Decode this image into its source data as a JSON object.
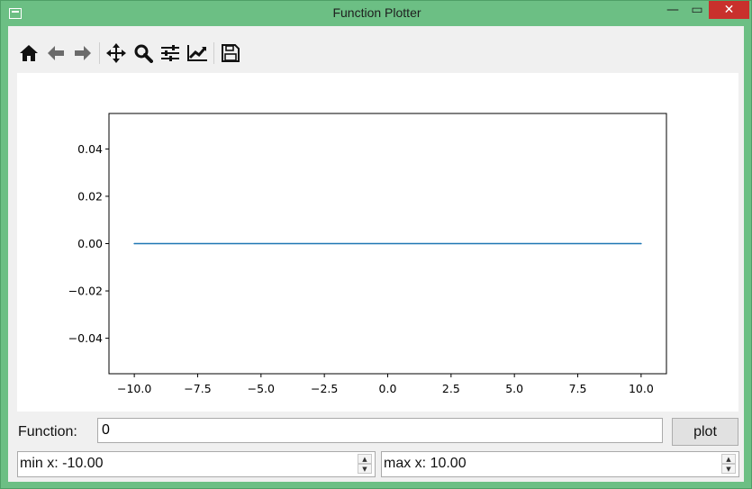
{
  "window": {
    "title": "Function Plotter"
  },
  "window_controls": {
    "minimize": "—",
    "maximize": "▭",
    "close": "✕"
  },
  "toolbar": {
    "items": [
      {
        "name": "home-icon"
      },
      {
        "name": "back-icon"
      },
      {
        "name": "forward-icon"
      },
      {
        "name": "pan-icon"
      },
      {
        "name": "zoom-icon"
      },
      {
        "name": "configure-subplots-icon"
      },
      {
        "name": "edit-axis-icon"
      },
      {
        "name": "save-icon"
      }
    ]
  },
  "form": {
    "function_label": "Function:",
    "function_value": "0",
    "plot_button": "plot",
    "min_x": "min x: -10.00",
    "max_x": "max x: 10.00"
  },
  "colors": {
    "line": "#1f77b4",
    "titlebar": "#6cbf84"
  },
  "chart_data": {
    "type": "line",
    "title": "",
    "xlabel": "",
    "ylabel": "",
    "x": [
      -10.0,
      10.0
    ],
    "series": [
      {
        "values": [
          0.0,
          0.0
        ]
      }
    ],
    "xlim": [
      -11.0,
      11.0
    ],
    "ylim": [
      -0.055,
      0.055
    ],
    "xticks": [
      -10.0,
      -7.5,
      -5.0,
      -2.5,
      0.0,
      2.5,
      5.0,
      7.5,
      10.0
    ],
    "xtick_labels": [
      "−10.0",
      "−7.5",
      "−5.0",
      "−2.5",
      "0.0",
      "2.5",
      "5.0",
      "7.5",
      "10.0"
    ],
    "yticks": [
      0.04,
      0.02,
      0.0,
      -0.02,
      -0.04
    ],
    "ytick_labels": [
      "0.04",
      "0.02",
      "0.00",
      "−0.02",
      "−0.04"
    ],
    "grid": false
  }
}
